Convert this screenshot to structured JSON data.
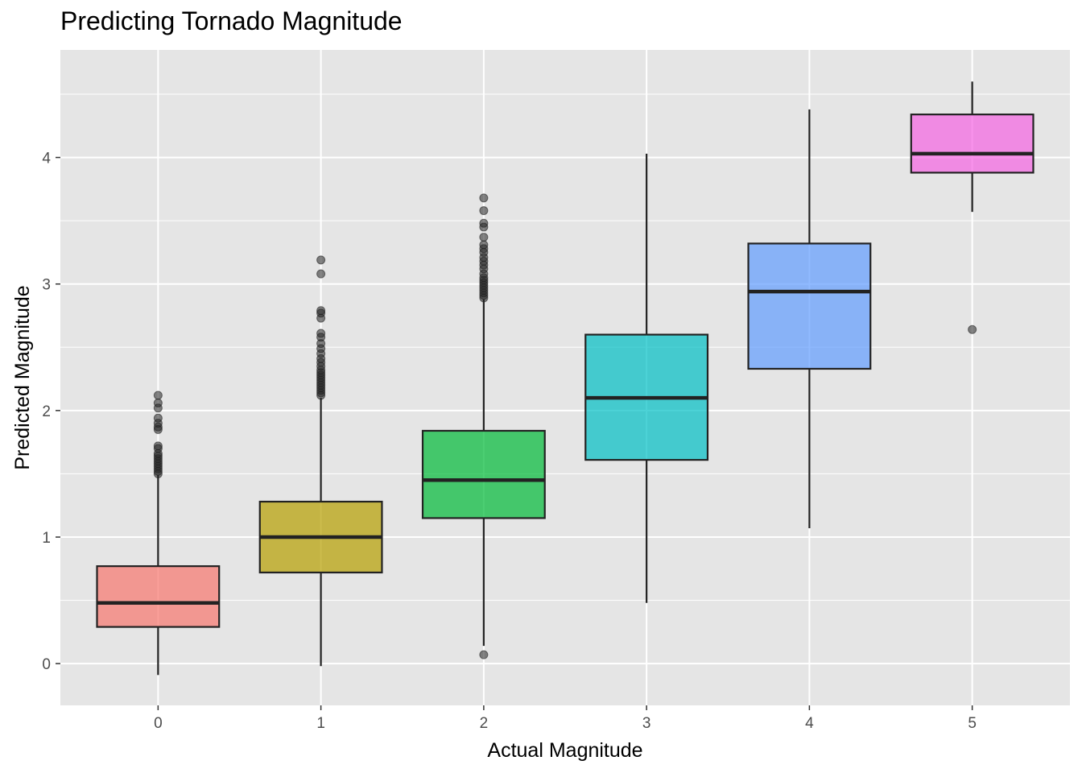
{
  "chart_data": {
    "type": "boxplot",
    "title": "Predicting Tornado Magnitude",
    "xlabel": "Actual Magnitude",
    "ylabel": "Predicted Magnitude",
    "ylim": [
      -0.33,
      4.85
    ],
    "y_ticks": [
      0,
      1,
      2,
      3,
      4
    ],
    "categories": [
      "0",
      "1",
      "2",
      "3",
      "4",
      "5"
    ],
    "panel_background": "#e5e5e5",
    "grid": true,
    "legend": "none",
    "colors": [
      "#F8766D",
      "#B79F00",
      "#00BA38",
      "#00BFC4",
      "#619CFF",
      "#F564E3"
    ],
    "boxes": [
      {
        "x": "0",
        "q1": 0.29,
        "median": 0.48,
        "q3": 0.77,
        "whisker_low": -0.09,
        "whisker_high": 1.49,
        "outliers": [
          1.5,
          1.52,
          1.54,
          1.56,
          1.58,
          1.6,
          1.62,
          1.64,
          1.66,
          1.7,
          1.72,
          1.85,
          1.87,
          1.9,
          1.94,
          2.02,
          2.06,
          2.12
        ]
      },
      {
        "x": "1",
        "q1": 0.72,
        "median": 1.0,
        "q3": 1.28,
        "whisker_low": -0.02,
        "whisker_high": 2.1,
        "outliers": [
          2.12,
          2.14,
          2.16,
          2.18,
          2.2,
          2.22,
          2.24,
          2.26,
          2.28,
          2.3,
          2.32,
          2.35,
          2.38,
          2.41,
          2.45,
          2.49,
          2.53,
          2.58,
          2.61,
          2.73,
          2.77,
          2.79,
          3.08,
          3.19
        ]
      },
      {
        "x": "2",
        "q1": 1.15,
        "median": 1.45,
        "q3": 1.84,
        "whisker_low": 0.14,
        "whisker_high": 2.88,
        "outliers": [
          0.07,
          2.89,
          2.91,
          2.93,
          2.95,
          2.97,
          2.99,
          3.01,
          3.03,
          3.05,
          3.08,
          3.12,
          3.15,
          3.18,
          3.21,
          3.25,
          3.28,
          3.31,
          3.37,
          3.45,
          3.48,
          3.58,
          3.68
        ]
      },
      {
        "x": "3",
        "q1": 1.61,
        "median": 2.1,
        "q3": 2.6,
        "whisker_low": 0.48,
        "whisker_high": 4.03,
        "outliers": []
      },
      {
        "x": "4",
        "q1": 2.33,
        "median": 2.94,
        "q3": 3.32,
        "whisker_low": 1.07,
        "whisker_high": 4.38,
        "outliers": []
      },
      {
        "x": "5",
        "q1": 3.88,
        "median": 4.03,
        "q3": 4.34,
        "whisker_low": 3.57,
        "whisker_high": 4.6,
        "outliers": [
          2.64
        ]
      }
    ]
  }
}
